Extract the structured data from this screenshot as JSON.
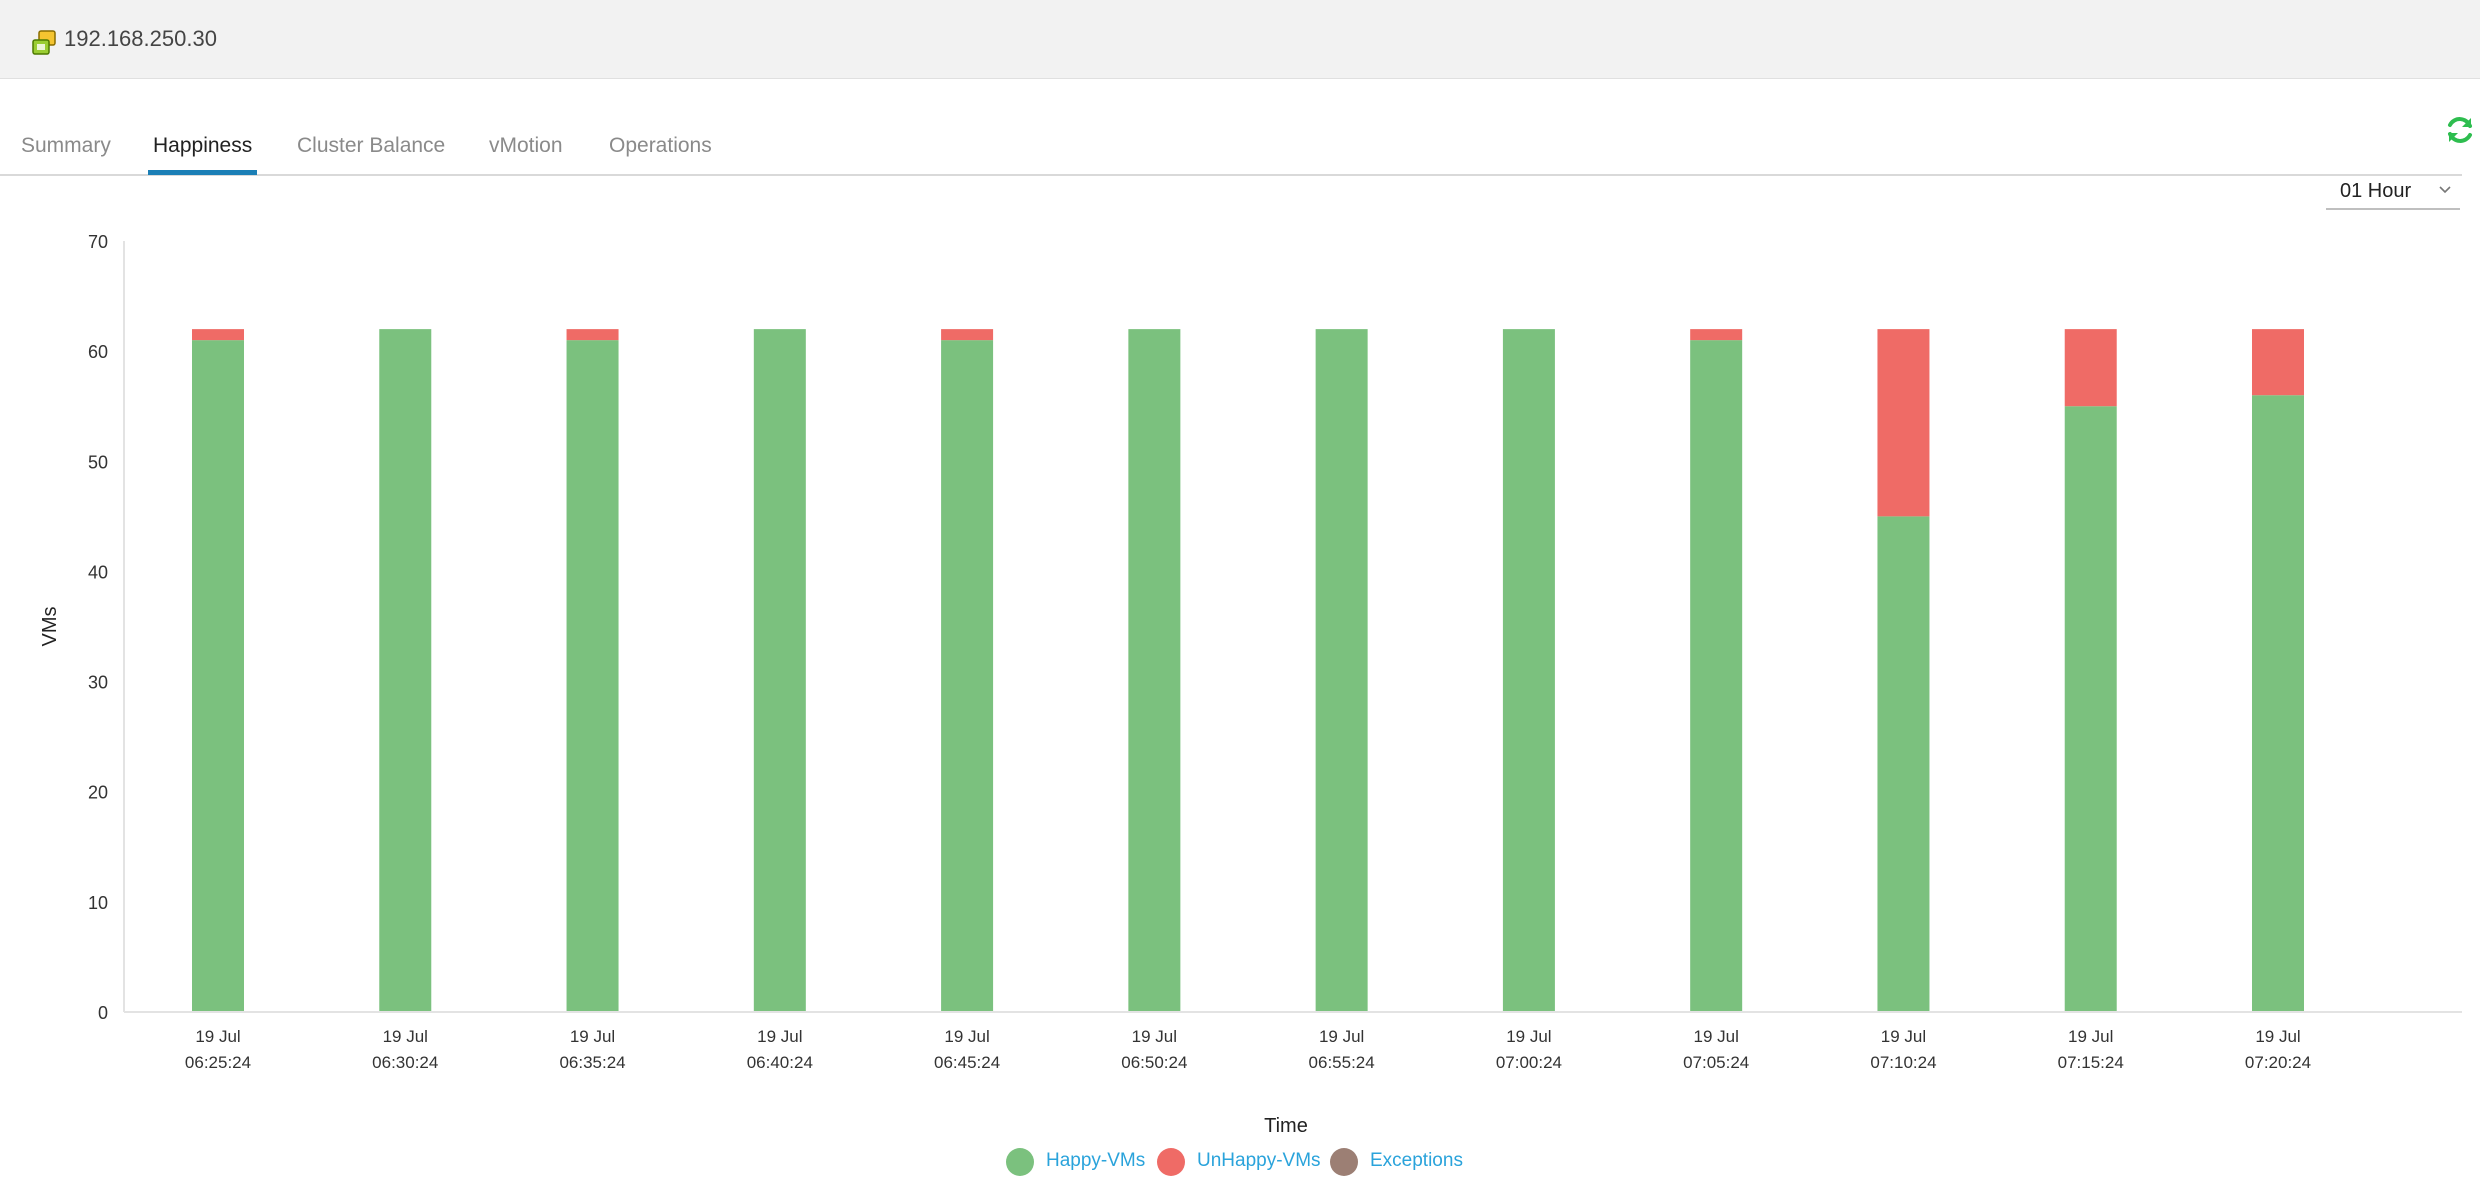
{
  "header": {
    "title": "192.168.250.30",
    "icon": "vm-host-icon"
  },
  "tabs": [
    {
      "label": "Summary",
      "active": false
    },
    {
      "label": "Happiness",
      "active": true
    },
    {
      "label": "Cluster Balance",
      "active": false
    },
    {
      "label": "vMotion",
      "active": false
    },
    {
      "label": "Operations",
      "active": false
    }
  ],
  "toolbar": {
    "refresh_icon": "refresh-icon",
    "time_range": "01 Hour"
  },
  "colors": {
    "happy": "#7bc17e",
    "unhappy": "#ef6b66",
    "exceptions": "#9c7f74",
    "accent": "#1b7fb6",
    "legend_text": "#2aa3db",
    "refresh": "#2ebd4f"
  },
  "chart_data": {
    "type": "bar",
    "stacked": true,
    "xlabel": "Time",
    "ylabel": "VMs",
    "ylim": [
      0,
      70
    ],
    "yticks": [
      0,
      10,
      20,
      30,
      40,
      50,
      60,
      70
    ],
    "grid": false,
    "legend_position": "bottom",
    "categories": [
      {
        "date": "19 Jul",
        "time": "06:25:24"
      },
      {
        "date": "19 Jul",
        "time": "06:30:24"
      },
      {
        "date": "19 Jul",
        "time": "06:35:24"
      },
      {
        "date": "19 Jul",
        "time": "06:40:24"
      },
      {
        "date": "19 Jul",
        "time": "06:45:24"
      },
      {
        "date": "19 Jul",
        "time": "06:50:24"
      },
      {
        "date": "19 Jul",
        "time": "06:55:24"
      },
      {
        "date": "19 Jul",
        "time": "07:00:24"
      },
      {
        "date": "19 Jul",
        "time": "07:05:24"
      },
      {
        "date": "19 Jul",
        "time": "07:10:24"
      },
      {
        "date": "19 Jul",
        "time": "07:15:24"
      },
      {
        "date": "19 Jul",
        "time": "07:20:24"
      }
    ],
    "series": [
      {
        "name": "Happy-VMs",
        "values": [
          61,
          62,
          61,
          62,
          61,
          62,
          62,
          62,
          61,
          45,
          55,
          56
        ]
      },
      {
        "name": "UnHappy-VMs",
        "values": [
          1,
          0,
          1,
          0,
          1,
          0,
          0,
          0,
          1,
          17,
          7,
          6
        ]
      },
      {
        "name": "Exceptions",
        "values": [
          0,
          0,
          0,
          0,
          0,
          0,
          0,
          0,
          0,
          0,
          0,
          0
        ]
      }
    ]
  }
}
